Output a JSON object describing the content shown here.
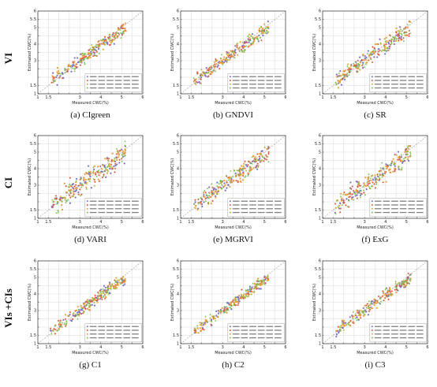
{
  "row_labels": [
    "VI",
    "CI",
    "VIs +CIs"
  ],
  "series_colors": [
    "#7a6fc0",
    "#e05a3a",
    "#e8a33c",
    "#7cc24a"
  ],
  "chart_data": [
    {
      "id": "a",
      "caption": "(a) CIgreen",
      "type": "scatter",
      "xlabel": "Measured CWC(%)",
      "ylabel": "Estimated CWC(%)",
      "xlim": [
        1,
        6
      ],
      "ylim": [
        1,
        6
      ],
      "xticks": [
        1,
        1.5,
        2,
        2.5,
        3,
        3.5,
        4,
        4.5,
        5,
        5.5,
        6
      ],
      "yticks": [
        1,
        1.5,
        2,
        2.5,
        3,
        3.5,
        4,
        4.5,
        5,
        5.5,
        6
      ],
      "xtick_labels": [
        "1",
        "1.5",
        "",
        "",
        "3",
        "",
        "4",
        "",
        "5",
        "",
        "6"
      ],
      "ytick_labels": [
        "1",
        "1.5",
        "",
        "",
        "3",
        "",
        "4",
        "",
        "5",
        "5.5",
        "6"
      ],
      "noise": 0.32,
      "seed": 11
    },
    {
      "id": "b",
      "caption": "(b) GNDVI",
      "type": "scatter",
      "xlabel": "Measured CWC(%)",
      "ylabel": "Estimated CWC(%)",
      "xlim": [
        1,
        6
      ],
      "ylim": [
        1,
        6
      ],
      "xticks": [
        1,
        1.5,
        2,
        2.5,
        3,
        3.5,
        4,
        4.5,
        5,
        5.5,
        6
      ],
      "yticks": [
        1,
        1.5,
        2,
        2.5,
        3,
        3.5,
        4,
        4.5,
        5,
        5.5,
        6
      ],
      "xtick_labels": [
        "1",
        "1.5",
        "",
        "",
        "3",
        "",
        "4",
        "",
        "5",
        "",
        "6"
      ],
      "ytick_labels": [
        "1",
        "1.5",
        "",
        "",
        "3",
        "",
        "4",
        "",
        "5",
        "5.5",
        "6"
      ],
      "noise": 0.34,
      "seed": 23
    },
    {
      "id": "c",
      "caption": "(c) SR",
      "type": "scatter",
      "xlabel": "Measured CWC(%)",
      "ylabel": "Estimated CWC(%)",
      "xlim": [
        1,
        6
      ],
      "ylim": [
        1,
        6
      ],
      "xticks": [
        1,
        1.5,
        2,
        2.5,
        3,
        3.5,
        4,
        4.5,
        5,
        5.5,
        6
      ],
      "yticks": [
        1,
        1.5,
        2,
        2.5,
        3,
        3.5,
        4,
        4.5,
        5,
        5.5,
        6
      ],
      "xtick_labels": [
        "1",
        "1.5",
        "",
        "",
        "3",
        "",
        "4",
        "",
        "5",
        "",
        "6"
      ],
      "ytick_labels": [
        "1",
        "1.5",
        "",
        "",
        "3",
        "",
        "4",
        "",
        "5",
        "5.5",
        "6"
      ],
      "noise": 0.4,
      "seed": 37
    },
    {
      "id": "d",
      "caption": "(d) VARI",
      "type": "scatter",
      "xlabel": "Measured CWC(%)",
      "ylabel": "Estimated CWC(%)",
      "xlim": [
        1,
        6
      ],
      "ylim": [
        1,
        6
      ],
      "xticks": [
        1,
        1.5,
        2,
        2.5,
        3,
        3.5,
        4,
        4.5,
        5,
        5.5,
        6
      ],
      "yticks": [
        1,
        1.5,
        2,
        2.5,
        3,
        3.5,
        4,
        4.5,
        5,
        5.5,
        6
      ],
      "xtick_labels": [
        "1",
        "1.5",
        "",
        "",
        "3",
        "",
        "4",
        "",
        "5",
        "",
        "6"
      ],
      "ytick_labels": [
        "1",
        "1.5",
        "",
        "",
        "3",
        "",
        "4",
        "",
        "5",
        "5.5",
        "6"
      ],
      "noise": 0.55,
      "seed": 41
    },
    {
      "id": "e",
      "caption": "(e) MGRVI",
      "type": "scatter",
      "xlabel": "Measured CWC(%)",
      "ylabel": "Estimated CWC(%)",
      "xlim": [
        1,
        6
      ],
      "ylim": [
        1,
        6
      ],
      "xticks": [
        1,
        1.5,
        2,
        2.5,
        3,
        3.5,
        4,
        4.5,
        5,
        5.5,
        6
      ],
      "yticks": [
        1,
        1.5,
        2,
        2.5,
        3,
        3.5,
        4,
        4.5,
        5,
        5.5,
        6
      ],
      "xtick_labels": [
        "1",
        "1.5",
        "",
        "",
        "3",
        "",
        "4",
        "",
        "5",
        "",
        "6"
      ],
      "ytick_labels": [
        "1",
        "1.5",
        "",
        "",
        "3",
        "",
        "4",
        "",
        "5",
        "5.5",
        "6"
      ],
      "noise": 0.45,
      "seed": 53
    },
    {
      "id": "f",
      "caption": "(f) ExG",
      "type": "scatter",
      "xlabel": "Measured CWC(%)",
      "ylabel": "Estimated CWC(%)",
      "xlim": [
        1,
        6
      ],
      "ylim": [
        1,
        6
      ],
      "xticks": [
        1,
        1.5,
        2,
        2.5,
        3,
        3.5,
        4,
        4.5,
        5,
        5.5,
        6
      ],
      "yticks": [
        1,
        1.5,
        2,
        2.5,
        3,
        3.5,
        4,
        4.5,
        5,
        5.5,
        6
      ],
      "xtick_labels": [
        "1",
        "1.5",
        "",
        "",
        "3",
        "",
        "4",
        "",
        "5",
        "",
        "6"
      ],
      "ytick_labels": [
        "1",
        "1.5",
        "",
        "",
        "3",
        "",
        "4",
        "",
        "5",
        "5.5",
        "6"
      ],
      "noise": 0.5,
      "seed": 67
    },
    {
      "id": "g",
      "caption": "(g) C1",
      "type": "scatter",
      "xlabel": "Measured CWC(%)",
      "ylabel": "Estimated CWC(%)",
      "xlim": [
        1,
        6
      ],
      "ylim": [
        1,
        6
      ],
      "xticks": [
        1,
        1.5,
        2,
        2.5,
        3,
        3.5,
        4,
        4.5,
        5,
        5.5,
        6
      ],
      "yticks": [
        1,
        1.5,
        2,
        2.5,
        3,
        3.5,
        4,
        4.5,
        5,
        5.5,
        6
      ],
      "xtick_labels": [
        "1",
        "1.5",
        "",
        "",
        "3",
        "",
        "4",
        "",
        "5",
        "",
        "6"
      ],
      "ytick_labels": [
        "1",
        "1.5",
        "",
        "",
        "3",
        "",
        "4",
        "",
        "5",
        "5.5",
        "6"
      ],
      "noise": 0.3,
      "seed": 71
    },
    {
      "id": "h",
      "caption": "(h) C2",
      "type": "scatter",
      "xlabel": "Measured CWC(%)",
      "ylabel": "Estimated CWC(%)",
      "xlim": [
        1,
        6
      ],
      "ylim": [
        1,
        6
      ],
      "xticks": [
        1,
        1.5,
        2,
        2.5,
        3,
        3.5,
        4,
        4.5,
        5,
        5.5,
        6
      ],
      "yticks": [
        1,
        1.5,
        2,
        2.5,
        3,
        3.5,
        4,
        4.5,
        5,
        5.5,
        6
      ],
      "xtick_labels": [
        "1",
        "1.5",
        "",
        "",
        "3",
        "",
        "4",
        "",
        "5",
        "",
        "6"
      ],
      "ytick_labels": [
        "1",
        "1.5",
        "",
        "",
        "3",
        "",
        "4",
        "",
        "5",
        "5.5",
        "6"
      ],
      "noise": 0.28,
      "seed": 83
    },
    {
      "id": "i",
      "caption": "(i) C3",
      "type": "scatter",
      "xlabel": "Measured CWC(%)",
      "ylabel": "Estimated CWC(%)",
      "xlim": [
        1,
        6
      ],
      "ylim": [
        1,
        6
      ],
      "xticks": [
        1,
        1.5,
        2,
        2.5,
        3,
        3.5,
        4,
        4.5,
        5,
        5.5,
        6
      ],
      "yticks": [
        1,
        1.5,
        2,
        2.5,
        3,
        3.5,
        4,
        4.5,
        5,
        5.5,
        6
      ],
      "xtick_labels": [
        "1",
        "1.5",
        "",
        "",
        "3",
        "",
        "4",
        "",
        "5",
        "",
        "6"
      ],
      "ytick_labels": [
        "1",
        "1.5",
        "",
        "",
        "3",
        "",
        "4",
        "",
        "5",
        "5.5",
        "6"
      ],
      "noise": 0.29,
      "seed": 97
    }
  ]
}
